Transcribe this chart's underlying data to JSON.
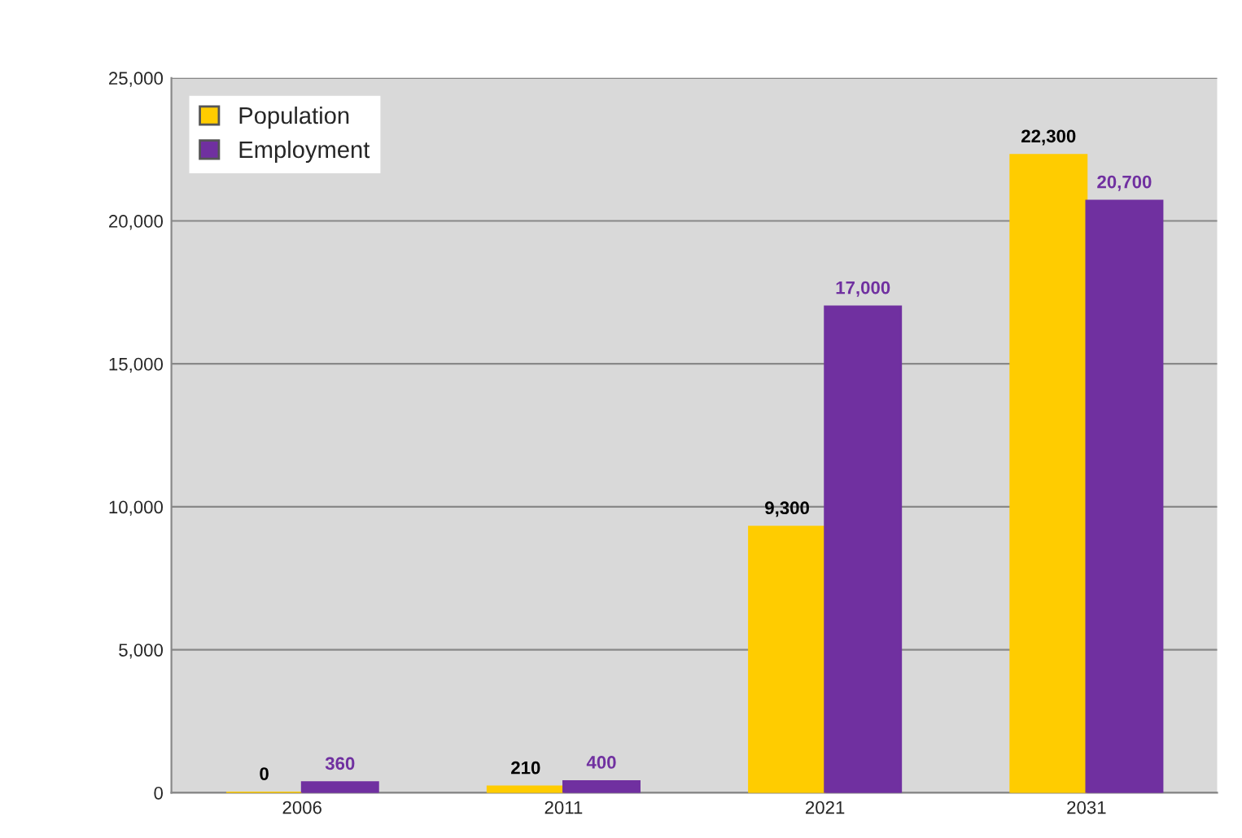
{
  "chart_data": {
    "type": "bar",
    "categories": [
      "2006",
      "2011",
      "2021",
      "2031"
    ],
    "series": [
      {
        "name": "Population",
        "color": "#ffcc00",
        "values": [
          0,
          210,
          9300,
          22300
        ],
        "value_labels": [
          "0",
          "210",
          "9,300",
          "22,300"
        ]
      },
      {
        "name": "Employment",
        "color": "#7030a0",
        "values": [
          360,
          400,
          17000,
          20700
        ],
        "value_labels": [
          "360",
          "400",
          "17,000",
          "20,700"
        ]
      }
    ],
    "ylim": [
      0,
      25000
    ],
    "yticks": [
      {
        "value": 0,
        "label": "0"
      },
      {
        "value": 5000,
        "label": "5,000"
      },
      {
        "value": 10000,
        "label": "10,000"
      },
      {
        "value": 15000,
        "label": "15,000"
      },
      {
        "value": 20000,
        "label": "20,000"
      },
      {
        "value": 25000,
        "label": "25,000"
      }
    ],
    "grid": "y",
    "legend": "top left"
  }
}
